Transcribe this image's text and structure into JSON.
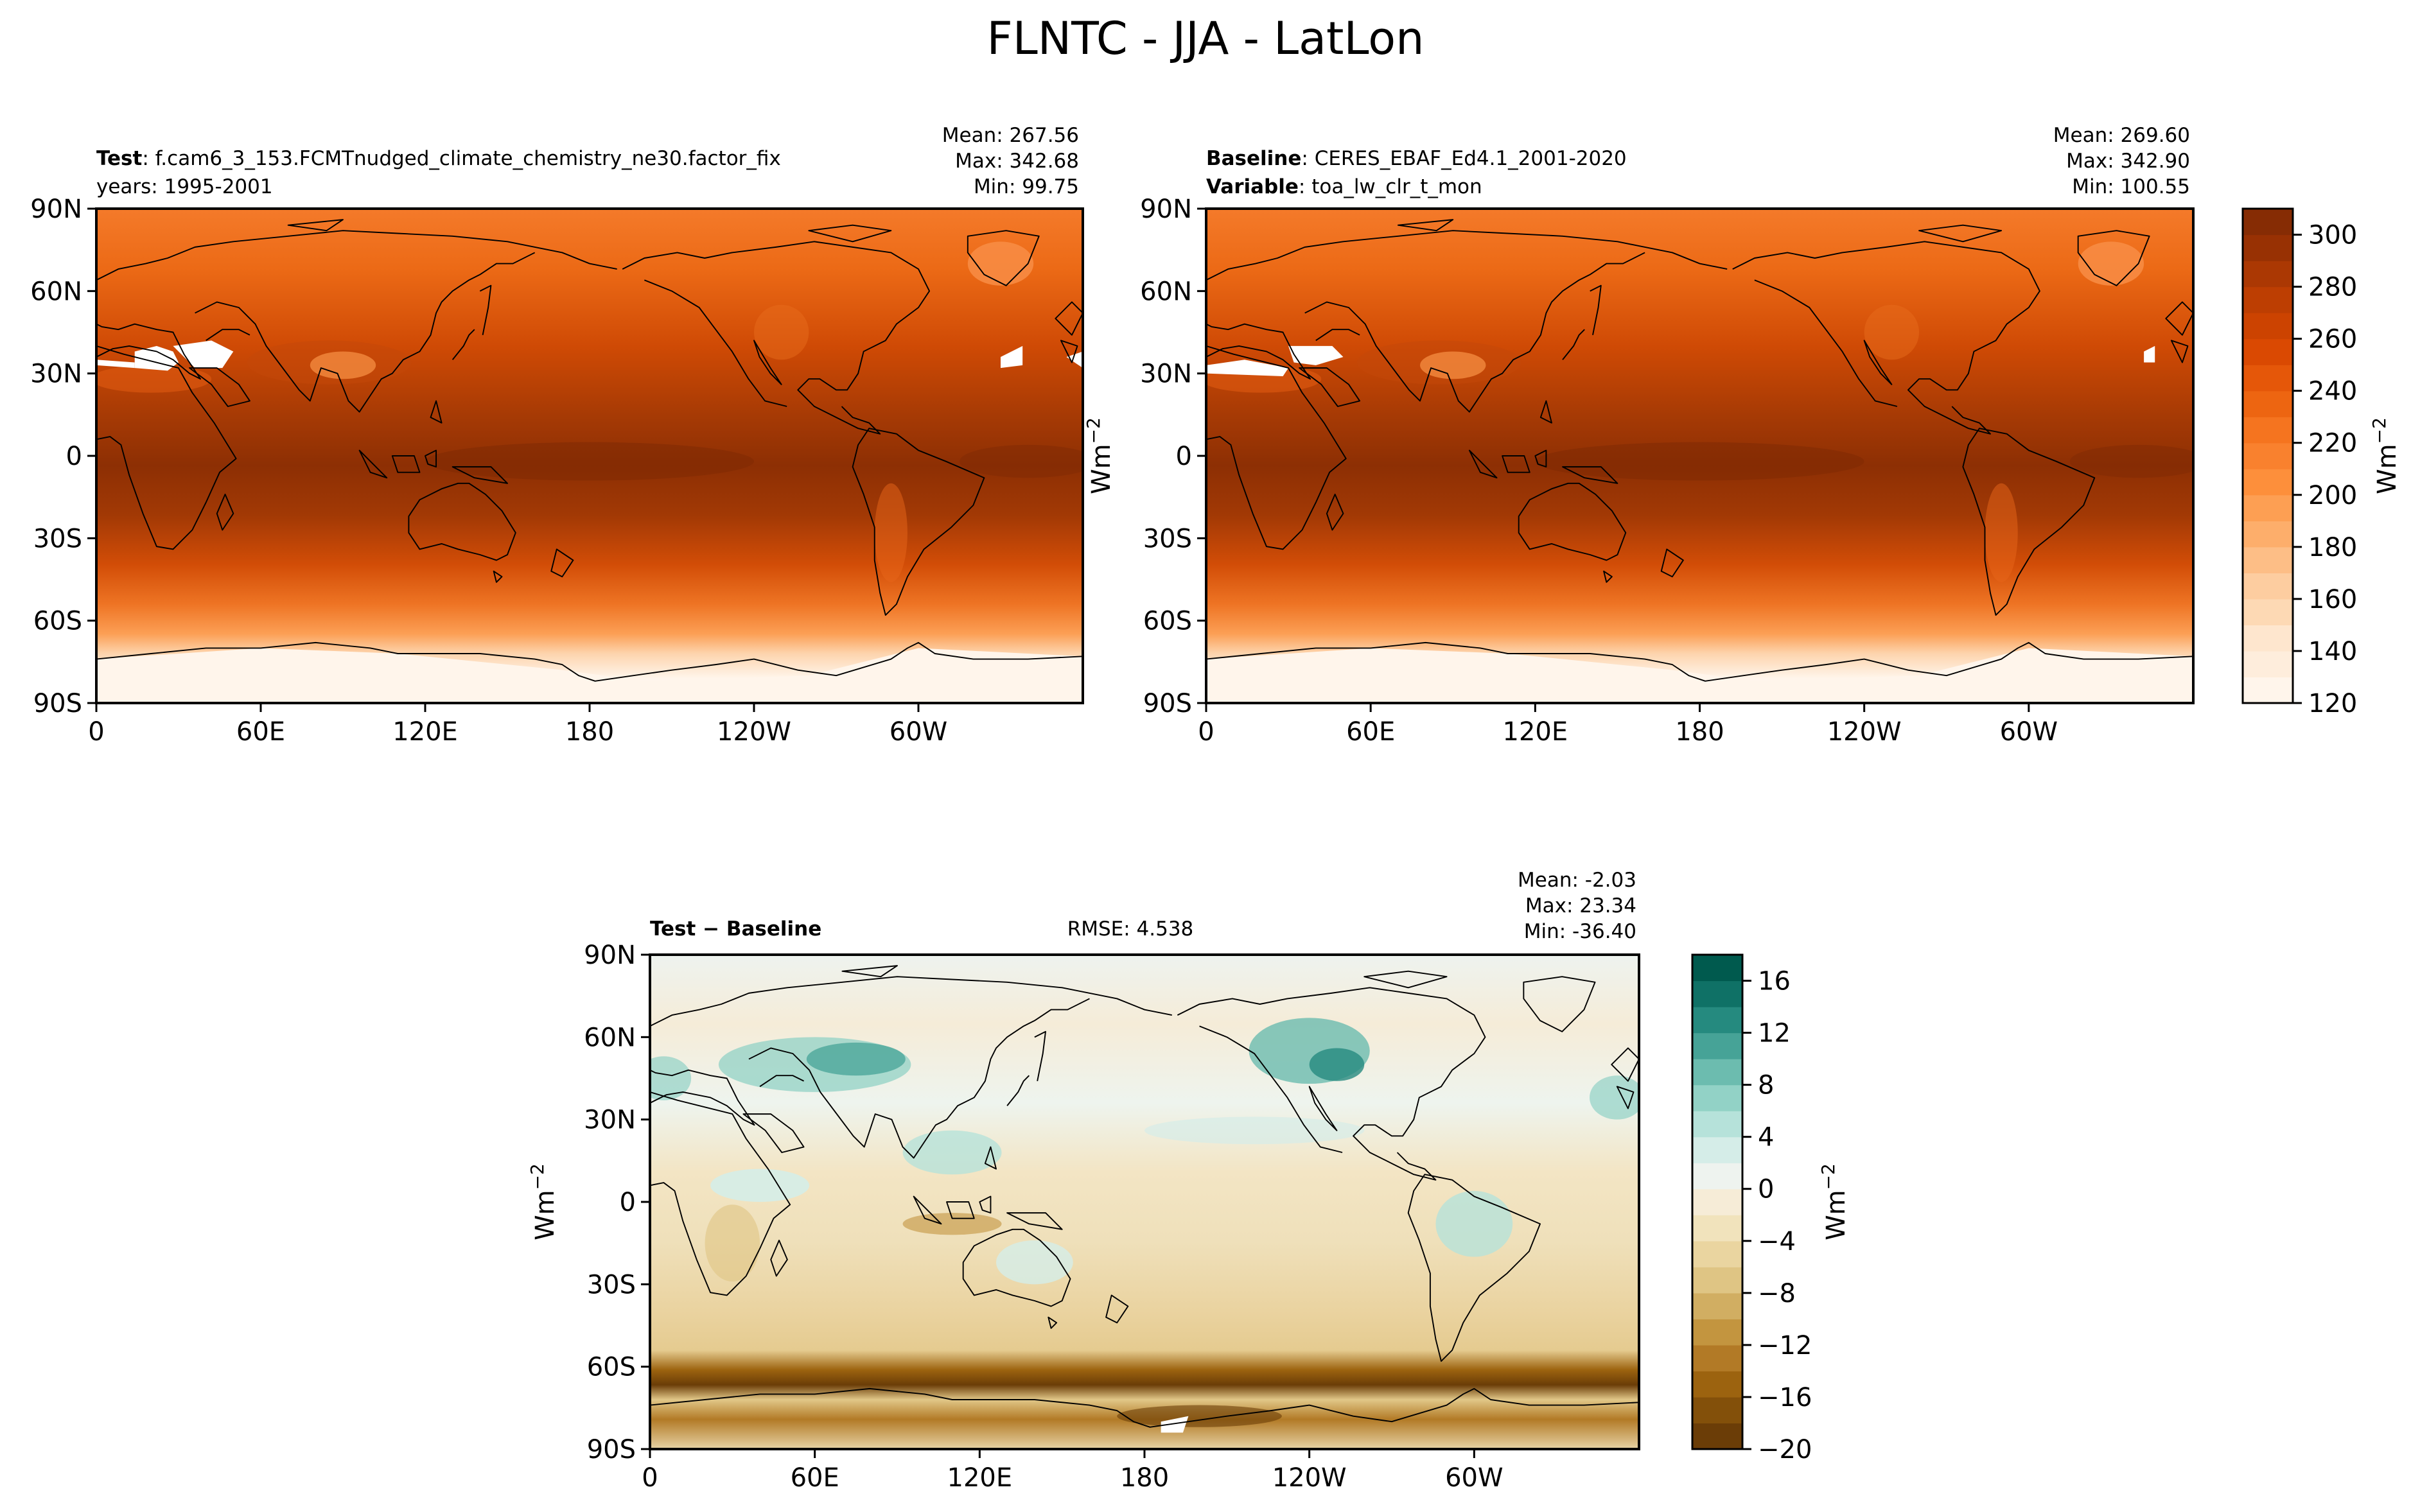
{
  "suptitle": "FLNTC - JJA - LatLon",
  "panels": {
    "test": {
      "label_bold": "Test",
      "label_text": "f.cam6_3_153.FCMTnudged_climate_chemistry_ne30.factor_fix",
      "line2": "years: 1995-2001",
      "stats": [
        "Mean: 267.56",
        "Max: 342.68",
        "Min: 99.75"
      ]
    },
    "baseline": {
      "label_bold": "Baseline",
      "label_text": "CERES_EBAF_Ed4.1_2001-2020",
      "line2_bold": "Variable",
      "line2_text": "toa_lw_clr_t_mon",
      "stats": [
        "Mean: 269.60",
        "Max: 342.90",
        "Min: 100.55"
      ]
    },
    "diff": {
      "label": "Test − Baseline",
      "rmse": "RMSE: 4.538",
      "stats": [
        "Mean: -2.03",
        "Max: 23.34",
        "Min: -36.40"
      ]
    }
  },
  "units": "Wm",
  "units_exp": "−2",
  "chart_data": [
    {
      "type": "heatmap",
      "panel": "test",
      "xticks": [
        "0",
        "60E",
        "120E",
        "180",
        "120W",
        "60W"
      ],
      "yticks": [
        "90N",
        "60N",
        "30N",
        "0",
        "30S",
        "60S",
        "90S"
      ],
      "xlim": [
        0,
        360
      ],
      "ylim": [
        -90,
        90
      ],
      "colormap": "Oranges",
      "mean": 267.56,
      "max": 342.68,
      "min": 99.75
    },
    {
      "type": "heatmap",
      "panel": "baseline",
      "xticks": [
        "0",
        "60E",
        "120E",
        "180",
        "120W",
        "60W"
      ],
      "yticks": [
        "90N",
        "60N",
        "30N",
        "0",
        "30S",
        "60S",
        "90S"
      ],
      "xlim": [
        0,
        360
      ],
      "ylim": [
        -90,
        90
      ],
      "colormap": "Oranges",
      "mean": 269.6,
      "max": 342.9,
      "min": 100.55,
      "colorbar": {
        "ticks": [
          "120",
          "140",
          "160",
          "180",
          "200",
          "220",
          "240",
          "260",
          "280",
          "300"
        ],
        "range": [
          120,
          310
        ],
        "levels": [
          120,
          130,
          140,
          150,
          160,
          170,
          180,
          190,
          200,
          210,
          220,
          230,
          240,
          250,
          260,
          270,
          280,
          290,
          300,
          310
        ],
        "colors": [
          "#fff5eb",
          "#feeddc",
          "#fee6ce",
          "#fdd9b4",
          "#fdcda0",
          "#fdbe86",
          "#fdae6b",
          "#fd9f53",
          "#fd8f3b",
          "#f9812e",
          "#f5741f",
          "#ed6511",
          "#e55709",
          "#da4902",
          "#cc4301",
          "#bd3e02",
          "#ab3803",
          "#983103",
          "#862c04"
        ]
      }
    },
    {
      "type": "heatmap",
      "panel": "diff",
      "xticks": [
        "0",
        "60E",
        "120E",
        "180",
        "120W",
        "60W"
      ],
      "yticks": [
        "90N",
        "60N",
        "30N",
        "0",
        "30S",
        "60S",
        "90S"
      ],
      "xlim": [
        0,
        360
      ],
      "ylim": [
        -90,
        90
      ],
      "colormap": "BrBG",
      "mean": -2.03,
      "max": 23.34,
      "min": -36.4,
      "colorbar": {
        "ticks": [
          "−20",
          "−16",
          "−12",
          "−8",
          "−4",
          "0",
          "4",
          "8",
          "12",
          "16"
        ],
        "range": [
          -20,
          18
        ],
        "levels": [
          -20,
          -18,
          -16,
          -14,
          -12,
          -10,
          -8,
          -6,
          -4,
          -2,
          0,
          2,
          4,
          6,
          8,
          10,
          12,
          14,
          16,
          18
        ],
        "colors": [
          "#6b3d07",
          "#83500a",
          "#9c630f",
          "#b27a26",
          "#c3953f",
          "#d1ae62",
          "#dfc584",
          "#ead5a0",
          "#f1e3bc",
          "#f6ecd7",
          "#eef3ef",
          "#d5ede8",
          "#b6e2da",
          "#92d2c6",
          "#6cbcaf",
          "#46a397",
          "#258a7f",
          "#0f7166",
          "#005a4e"
        ]
      }
    }
  ]
}
